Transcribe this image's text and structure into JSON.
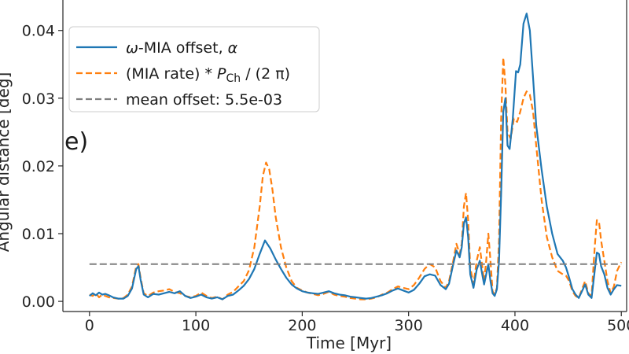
{
  "chart_data": {
    "type": "line",
    "title": "",
    "panel_label": "e)",
    "xlabel": "Time [Myr]",
    "ylabel": "Angular distance [deg]",
    "xlim": [
      -25,
      505
    ],
    "ylim": [
      -0.0015,
      0.0445
    ],
    "xticks": [
      0,
      100,
      200,
      300,
      400,
      500
    ],
    "yticks": [
      0.0,
      0.01,
      0.02,
      0.03,
      0.04
    ],
    "ytick_labels": [
      "0.00",
      "0.01",
      "0.02",
      "0.03",
      "0.04"
    ],
    "legend_position": "top-left",
    "series": [
      {
        "name": "omega-MIA offset, alpha",
        "legend_label": {
          "prefix": "ω-MIA offset, ",
          "symbol": "α"
        },
        "color": "#1f77b4",
        "style": "solid",
        "points": [
          [
            0,
            0.0008
          ],
          [
            3,
            0.0012
          ],
          [
            6,
            0.0009
          ],
          [
            9,
            0.0013
          ],
          [
            12,
            0.001
          ],
          [
            15,
            0.0011
          ],
          [
            18,
            0.0009
          ],
          [
            22,
            0.0006
          ],
          [
            27,
            0.0004
          ],
          [
            32,
            0.0004
          ],
          [
            36,
            0.0008
          ],
          [
            40,
            0.0019
          ],
          [
            44,
            0.0048
          ],
          [
            46,
            0.0052
          ],
          [
            48,
            0.0032
          ],
          [
            51,
            0.001
          ],
          [
            55,
            0.0006
          ],
          [
            60,
            0.0011
          ],
          [
            65,
            0.001
          ],
          [
            70,
            0.0012
          ],
          [
            75,
            0.0014
          ],
          [
            80,
            0.0012
          ],
          [
            85,
            0.0015
          ],
          [
            90,
            0.0008
          ],
          [
            95,
            0.0005
          ],
          [
            100,
            0.0007
          ],
          [
            105,
            0.001
          ],
          [
            110,
            0.0006
          ],
          [
            115,
            0.0004
          ],
          [
            120,
            0.0006
          ],
          [
            125,
            0.0003
          ],
          [
            130,
            0.0008
          ],
          [
            135,
            0.001
          ],
          [
            140,
            0.0016
          ],
          [
            145,
            0.0023
          ],
          [
            150,
            0.0033
          ],
          [
            155,
            0.0048
          ],
          [
            160,
            0.007
          ],
          [
            165,
            0.009
          ],
          [
            170,
            0.0078
          ],
          [
            175,
            0.0062
          ],
          [
            180,
            0.0048
          ],
          [
            185,
            0.0035
          ],
          [
            190,
            0.0025
          ],
          [
            195,
            0.0019
          ],
          [
            200,
            0.0015
          ],
          [
            205,
            0.0013
          ],
          [
            210,
            0.0012
          ],
          [
            215,
            0.0011
          ],
          [
            220,
            0.0013
          ],
          [
            225,
            0.0015
          ],
          [
            230,
            0.0012
          ],
          [
            235,
            0.001
          ],
          [
            240,
            0.0009
          ],
          [
            245,
            0.0007
          ],
          [
            250,
            0.0006
          ],
          [
            255,
            0.0005
          ],
          [
            260,
            0.0004
          ],
          [
            265,
            0.0005
          ],
          [
            270,
            0.0007
          ],
          [
            275,
            0.0009
          ],
          [
            280,
            0.0012
          ],
          [
            285,
            0.0016
          ],
          [
            290,
            0.0019
          ],
          [
            295,
            0.0016
          ],
          [
            300,
            0.0013
          ],
          [
            305,
            0.0017
          ],
          [
            310,
            0.0026
          ],
          [
            315,
            0.0037
          ],
          [
            320,
            0.004
          ],
          [
            325,
            0.0038
          ],
          [
            330,
            0.0024
          ],
          [
            335,
            0.0018
          ],
          [
            338,
            0.0026
          ],
          [
            342,
            0.0055
          ],
          [
            345,
            0.0075
          ],
          [
            348,
            0.0065
          ],
          [
            350,
            0.008
          ],
          [
            352,
            0.0115
          ],
          [
            354,
            0.0124
          ],
          [
            356,
            0.0095
          ],
          [
            358,
            0.004
          ],
          [
            361,
            0.002
          ],
          [
            364,
            0.0047
          ],
          [
            367,
            0.006
          ],
          [
            369,
            0.0042
          ],
          [
            371,
            0.0025
          ],
          [
            373,
            0.004
          ],
          [
            375,
            0.0055
          ],
          [
            377,
            0.003
          ],
          [
            379,
            0.0012
          ],
          [
            381,
            0.0008
          ],
          [
            383,
            0.0018
          ],
          [
            385,
            0.006
          ],
          [
            387,
            0.016
          ],
          [
            389,
            0.028
          ],
          [
            391,
            0.03
          ],
          [
            393,
            0.023
          ],
          [
            395,
            0.0225
          ],
          [
            398,
            0.027
          ],
          [
            401,
            0.034
          ],
          [
            403,
            0.0338
          ],
          [
            405,
            0.035
          ],
          [
            408,
            0.041
          ],
          [
            411,
            0.0425
          ],
          [
            414,
            0.04
          ],
          [
            417,
            0.033
          ],
          [
            420,
            0.026
          ],
          [
            425,
            0.0195
          ],
          [
            430,
            0.014
          ],
          [
            435,
            0.01
          ],
          [
            440,
            0.007
          ],
          [
            445,
            0.006
          ],
          [
            448,
            0.005
          ],
          [
            451,
            0.0035
          ],
          [
            454,
            0.0018
          ],
          [
            457,
            0.001
          ],
          [
            460,
            0.0005
          ],
          [
            463,
            0.0015
          ],
          [
            466,
            0.0025
          ],
          [
            469,
            0.001
          ],
          [
            472,
            0.0005
          ],
          [
            475,
            0.0045
          ],
          [
            477,
            0.0072
          ],
          [
            479,
            0.007
          ],
          [
            481,
            0.0052
          ],
          [
            484,
            0.004
          ],
          [
            487,
            0.002
          ],
          [
            490,
            0.001
          ],
          [
            493,
            0.0018
          ],
          [
            496,
            0.0024
          ],
          [
            500,
            0.0023
          ]
        ]
      },
      {
        "name": "(MIA rate) * P_Ch / (2 pi)",
        "legend_label": {
          "prefix": "(MIA rate) * ",
          "symbol": "P",
          "subscript": "Ch",
          "suffix": " / (2 π)"
        },
        "color": "#ff7f0e",
        "style": "dashed",
        "points": [
          [
            0,
            0.001
          ],
          [
            3,
            0.0008
          ],
          [
            6,
            0.0012
          ],
          [
            9,
            0.0006
          ],
          [
            12,
            0.001
          ],
          [
            15,
            0.0008
          ],
          [
            18,
            0.0006
          ],
          [
            22,
            0.0005
          ],
          [
            27,
            0.0004
          ],
          [
            32,
            0.0005
          ],
          [
            36,
            0.001
          ],
          [
            40,
            0.0022
          ],
          [
            44,
            0.0052
          ],
          [
            46,
            0.0055
          ],
          [
            48,
            0.0035
          ],
          [
            51,
            0.0012
          ],
          [
            55,
            0.0008
          ],
          [
            60,
            0.0013
          ],
          [
            65,
            0.0015
          ],
          [
            70,
            0.0016
          ],
          [
            75,
            0.0018
          ],
          [
            80,
            0.0014
          ],
          [
            85,
            0.0012
          ],
          [
            90,
            0.0008
          ],
          [
            95,
            0.0006
          ],
          [
            100,
            0.0008
          ],
          [
            105,
            0.0013
          ],
          [
            110,
            0.0008
          ],
          [
            115,
            0.0005
          ],
          [
            120,
            0.0007
          ],
          [
            125,
            0.0003
          ],
          [
            130,
            0.001
          ],
          [
            135,
            0.0014
          ],
          [
            140,
            0.0022
          ],
          [
            145,
            0.003
          ],
          [
            150,
            0.0046
          ],
          [
            155,
            0.008
          ],
          [
            160,
            0.014
          ],
          [
            163,
            0.0185
          ],
          [
            166,
            0.0205
          ],
          [
            169,
            0.0195
          ],
          [
            172,
            0.0165
          ],
          [
            175,
            0.0125
          ],
          [
            180,
            0.008
          ],
          [
            185,
            0.005
          ],
          [
            190,
            0.003
          ],
          [
            195,
            0.002
          ],
          [
            200,
            0.0016
          ],
          [
            205,
            0.0013
          ],
          [
            210,
            0.0011
          ],
          [
            215,
            0.0009
          ],
          [
            220,
            0.0011
          ],
          [
            225,
            0.0014
          ],
          [
            230,
            0.001
          ],
          [
            235,
            0.0008
          ],
          [
            240,
            0.0007
          ],
          [
            245,
            0.0005
          ],
          [
            250,
            0.0004
          ],
          [
            255,
            0.0003
          ],
          [
            260,
            0.0003
          ],
          [
            265,
            0.0004
          ],
          [
            270,
            0.0006
          ],
          [
            275,
            0.001
          ],
          [
            280,
            0.0013
          ],
          [
            285,
            0.0018
          ],
          [
            290,
            0.0022
          ],
          [
            295,
            0.002
          ],
          [
            300,
            0.0018
          ],
          [
            305,
            0.0024
          ],
          [
            310,
            0.0035
          ],
          [
            315,
            0.0048
          ],
          [
            320,
            0.0055
          ],
          [
            325,
            0.005
          ],
          [
            330,
            0.003
          ],
          [
            335,
            0.002
          ],
          [
            338,
            0.003
          ],
          [
            342,
            0.006
          ],
          [
            345,
            0.0085
          ],
          [
            348,
            0.007
          ],
          [
            350,
            0.0085
          ],
          [
            352,
            0.014
          ],
          [
            354,
            0.016
          ],
          [
            356,
            0.012
          ],
          [
            358,
            0.005
          ],
          [
            361,
            0.0025
          ],
          [
            364,
            0.006
          ],
          [
            367,
            0.008
          ],
          [
            369,
            0.0055
          ],
          [
            371,
            0.003
          ],
          [
            373,
            0.006
          ],
          [
            375,
            0.01
          ],
          [
            377,
            0.006
          ],
          [
            379,
            0.0015
          ],
          [
            381,
            0.001
          ],
          [
            383,
            0.002
          ],
          [
            385,
            0.009
          ],
          [
            387,
            0.027
          ],
          [
            389,
            0.036
          ],
          [
            391,
            0.032
          ],
          [
            393,
            0.025
          ],
          [
            396,
            0.024
          ],
          [
            399,
            0.027
          ],
          [
            402,
            0.0265
          ],
          [
            405,
            0.028
          ],
          [
            408,
            0.03
          ],
          [
            411,
            0.031
          ],
          [
            414,
            0.0305
          ],
          [
            417,
            0.028
          ],
          [
            420,
            0.023
          ],
          [
            425,
            0.015
          ],
          [
            430,
            0.0095
          ],
          [
            435,
            0.0065
          ],
          [
            440,
            0.0045
          ],
          [
            445,
            0.004
          ],
          [
            448,
            0.0038
          ],
          [
            451,
            0.003
          ],
          [
            454,
            0.0015
          ],
          [
            457,
            0.0008
          ],
          [
            460,
            0.0005
          ],
          [
            463,
            0.0018
          ],
          [
            466,
            0.003
          ],
          [
            469,
            0.0012
          ],
          [
            472,
            0.0008
          ],
          [
            475,
            0.008
          ],
          [
            477,
            0.012
          ],
          [
            479,
            0.0118
          ],
          [
            481,
            0.009
          ],
          [
            484,
            0.006
          ],
          [
            487,
            0.003
          ],
          [
            490,
            0.0012
          ],
          [
            493,
            0.0022
          ],
          [
            496,
            0.0045
          ],
          [
            500,
            0.0058
          ]
        ]
      },
      {
        "name": "mean offset: 5.5e-03",
        "legend_label": {
          "prefix": "mean offset: 5.5e-03"
        },
        "color": "#7f7f7f",
        "style": "dashed",
        "points": [
          [
            0,
            0.0055
          ],
          [
            500,
            0.0055
          ]
        ]
      }
    ]
  }
}
